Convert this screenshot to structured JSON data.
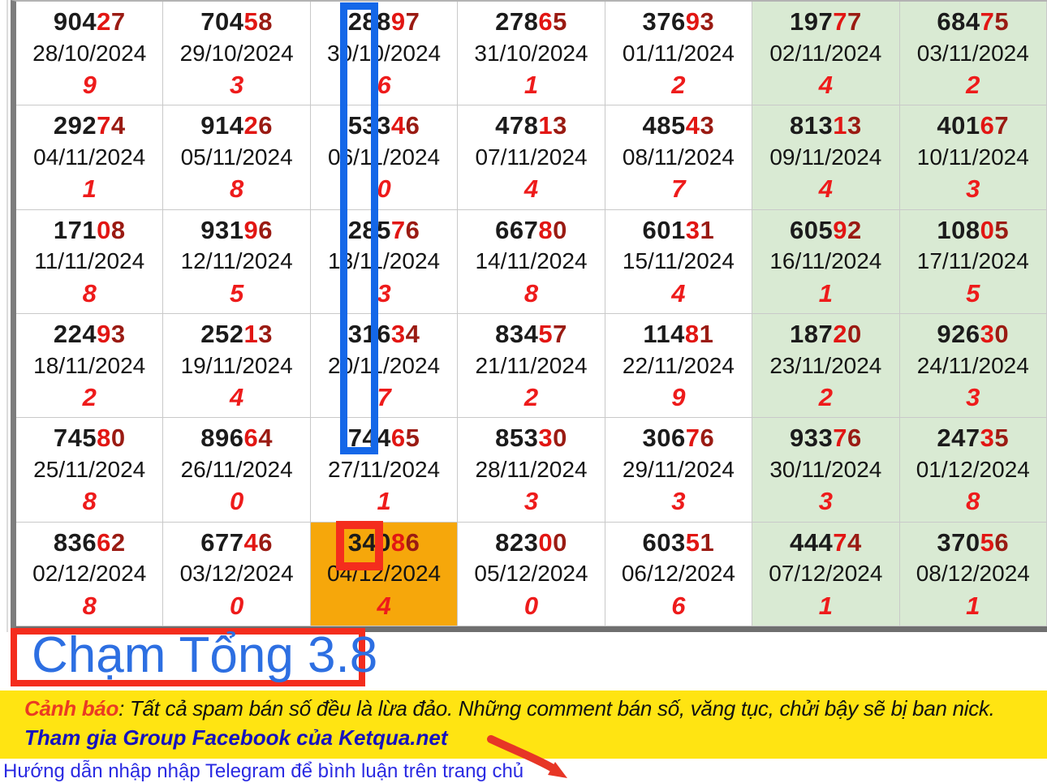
{
  "colors": {
    "bright_red": "#e21613",
    "dark_red": "#9a1b13",
    "sum_red": "#ee1b1b",
    "green_bg": "#d9ead3",
    "orange_bg": "#f6a70b",
    "blue_annotation": "#1467e8",
    "red_annotation": "#f42d1d",
    "banner_yellow": "#ffe412",
    "cham_blue": "#2d6fe2",
    "facebook_blue": "#1512bf",
    "telegram_blue": "#2a2ae2",
    "warning_red": "#ea3b23"
  },
  "grid": {
    "cells": [
      {
        "black": "904",
        "bright": "2",
        "dark": "7",
        "date": "28/10/2024",
        "sum": "9",
        "bg": "white"
      },
      {
        "black": "704",
        "bright": "5",
        "dark": "8",
        "date": "29/10/2024",
        "sum": "3",
        "bg": "white"
      },
      {
        "black": "288",
        "bright": "9",
        "dark": "7",
        "date": "30/10/2024",
        "sum": "6",
        "bg": "white"
      },
      {
        "black": "278",
        "bright": "6",
        "dark": "5",
        "date": "31/10/2024",
        "sum": "1",
        "bg": "white"
      },
      {
        "black": "376",
        "bright": "9",
        "dark": "3",
        "date": "01/11/2024",
        "sum": "2",
        "bg": "white"
      },
      {
        "black": "197",
        "bright": "7",
        "dark": "7",
        "date": "02/11/2024",
        "sum": "4",
        "bg": "green"
      },
      {
        "black": "684",
        "bright": "7",
        "dark": "5",
        "date": "03/11/2024",
        "sum": "2",
        "bg": "green"
      },
      {
        "black": "292",
        "bright": "7",
        "dark": "4",
        "date": "04/11/2024",
        "sum": "1",
        "bg": "white"
      },
      {
        "black": "914",
        "bright": "2",
        "dark": "6",
        "date": "05/11/2024",
        "sum": "8",
        "bg": "white"
      },
      {
        "black": "533",
        "bright": "4",
        "dark": "6",
        "date": "06/11/2024",
        "sum": "0",
        "bg": "white"
      },
      {
        "black": "478",
        "bright": "1",
        "dark": "3",
        "date": "07/11/2024",
        "sum": "4",
        "bg": "white"
      },
      {
        "black": "485",
        "bright": "4",
        "dark": "3",
        "date": "08/11/2024",
        "sum": "7",
        "bg": "white"
      },
      {
        "black": "813",
        "bright": "1",
        "dark": "3",
        "date": "09/11/2024",
        "sum": "4",
        "bg": "green"
      },
      {
        "black": "401",
        "bright": "6",
        "dark": "7",
        "date": "10/11/2024",
        "sum": "3",
        "bg": "green"
      },
      {
        "black": "171",
        "bright": "0",
        "dark": "8",
        "date": "11/11/2024",
        "sum": "8",
        "bg": "white"
      },
      {
        "black": "931",
        "bright": "9",
        "dark": "6",
        "date": "12/11/2024",
        "sum": "5",
        "bg": "white"
      },
      {
        "black": "285",
        "bright": "7",
        "dark": "6",
        "date": "13/11/2024",
        "sum": "3",
        "bg": "white"
      },
      {
        "black": "667",
        "bright": "8",
        "dark": "0",
        "date": "14/11/2024",
        "sum": "8",
        "bg": "white"
      },
      {
        "black": "601",
        "bright": "3",
        "dark": "1",
        "date": "15/11/2024",
        "sum": "4",
        "bg": "white"
      },
      {
        "black": "605",
        "bright": "9",
        "dark": "2",
        "date": "16/11/2024",
        "sum": "1",
        "bg": "green"
      },
      {
        "black": "108",
        "bright": "0",
        "dark": "5",
        "date": "17/11/2024",
        "sum": "5",
        "bg": "green"
      },
      {
        "black": "224",
        "bright": "9",
        "dark": "3",
        "date": "18/11/2024",
        "sum": "2",
        "bg": "white"
      },
      {
        "black": "252",
        "bright": "1",
        "dark": "3",
        "date": "19/11/2024",
        "sum": "4",
        "bg": "white"
      },
      {
        "black": "316",
        "bright": "3",
        "dark": "4",
        "date": "20/11/2024",
        "sum": "7",
        "bg": "white"
      },
      {
        "black": "834",
        "bright": "5",
        "dark": "7",
        "date": "21/11/2024",
        "sum": "2",
        "bg": "white"
      },
      {
        "black": "114",
        "bright": "8",
        "dark": "1",
        "date": "22/11/2024",
        "sum": "9",
        "bg": "white"
      },
      {
        "black": "187",
        "bright": "2",
        "dark": "0",
        "date": "23/11/2024",
        "sum": "2",
        "bg": "green"
      },
      {
        "black": "926",
        "bright": "3",
        "dark": "0",
        "date": "24/11/2024",
        "sum": "3",
        "bg": "green"
      },
      {
        "black": "745",
        "bright": "8",
        "dark": "0",
        "date": "25/11/2024",
        "sum": "8",
        "bg": "white"
      },
      {
        "black": "896",
        "bright": "6",
        "dark": "4",
        "date": "26/11/2024",
        "sum": "0",
        "bg": "white"
      },
      {
        "black": "744",
        "bright": "6",
        "dark": "5",
        "date": "27/11/2024",
        "sum": "1",
        "bg": "white"
      },
      {
        "black": "853",
        "bright": "3",
        "dark": "0",
        "date": "28/11/2024",
        "sum": "3",
        "bg": "white"
      },
      {
        "black": "306",
        "bright": "7",
        "dark": "6",
        "date": "29/11/2024",
        "sum": "3",
        "bg": "white"
      },
      {
        "black": "933",
        "bright": "7",
        "dark": "6",
        "date": "30/11/2024",
        "sum": "3",
        "bg": "green"
      },
      {
        "black": "247",
        "bright": "3",
        "dark": "5",
        "date": "01/12/2024",
        "sum": "8",
        "bg": "green"
      },
      {
        "black": "836",
        "bright": "6",
        "dark": "2",
        "date": "02/12/2024",
        "sum": "8",
        "bg": "white"
      },
      {
        "black": "677",
        "bright": "4",
        "dark": "6",
        "date": "03/12/2024",
        "sum": "0",
        "bg": "white"
      },
      {
        "black": "340",
        "bright": "8",
        "dark": "6",
        "date": "04/12/2024",
        "sum": "4",
        "bg": "orange"
      },
      {
        "black": "823",
        "bright": "0",
        "dark": "0",
        "date": "05/12/2024",
        "sum": "0",
        "bg": "white"
      },
      {
        "black": "603",
        "bright": "5",
        "dark": "1",
        "date": "06/12/2024",
        "sum": "6",
        "bg": "white"
      },
      {
        "black": "444",
        "bright": "7",
        "dark": "4",
        "date": "07/12/2024",
        "sum": "1",
        "bg": "green"
      },
      {
        "black": "370",
        "bright": "5",
        "dark": "6",
        "date": "08/12/2024",
        "sum": "1",
        "bg": "green"
      }
    ]
  },
  "cham_tong": {
    "label": "Chạm Tổng 3.8"
  },
  "banner": {
    "warning_label": "Cảnh báo",
    "warning_text": ": Tất cả spam bán số đều là lừa đảo. Những comment bán số, văng tục, chửi bậy sẽ bị ban nick.",
    "facebook_line": "Tham gia Group Facebook của Ketqua.net"
  },
  "footer": {
    "telegram_line": "Hướng dẫn nhập nhập Telegram để bình luận trên trang chủ"
  }
}
